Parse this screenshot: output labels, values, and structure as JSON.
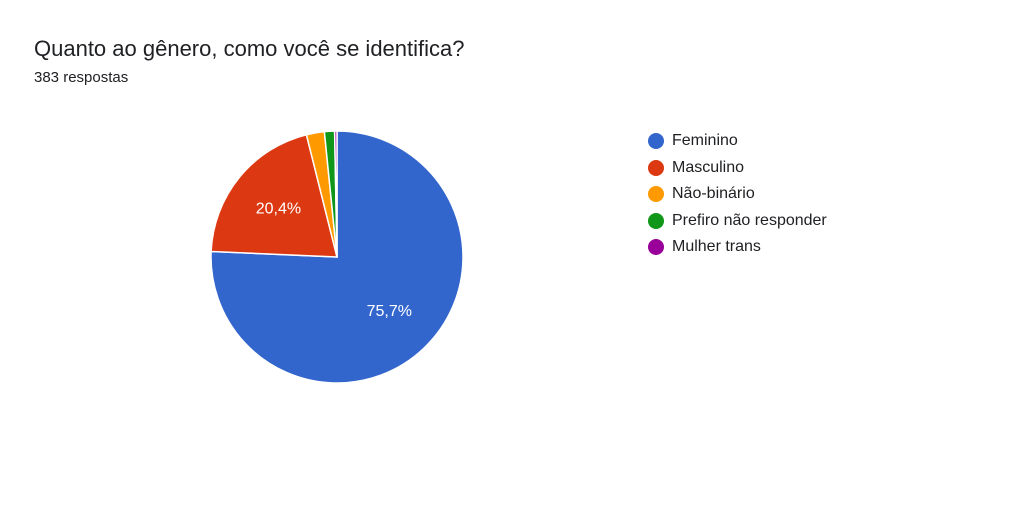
{
  "question": {
    "title": "Quanto ao gênero, como você se identifica?",
    "responses": "383 respostas"
  },
  "chart_data": {
    "type": "pie",
    "title": "Quanto ao gênero, como você se identifica?",
    "subtitle": "383 respostas",
    "legend_position": "right",
    "categories": [
      "Feminino",
      "Masculino",
      "Não-binário",
      "Prefiro não responder",
      "Mulher trans"
    ],
    "values": [
      75.7,
      20.4,
      2.3,
      1.3,
      0.3
    ],
    "colors": [
      "#3366cc",
      "#dc3912",
      "#ff9900",
      "#109618",
      "#990099"
    ],
    "data_labels": [
      "75,7%",
      "20,4%",
      "",
      "",
      ""
    ]
  }
}
